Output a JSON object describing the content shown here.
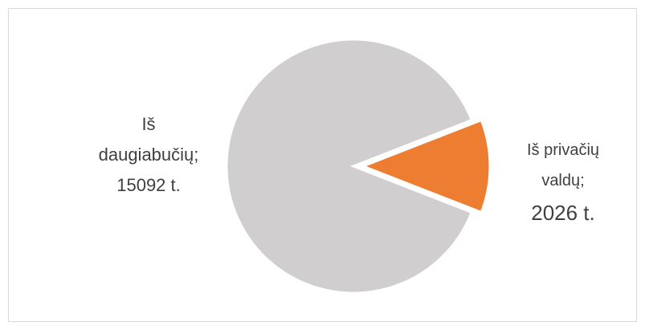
{
  "chart_data": {
    "type": "pie",
    "title": "",
    "slices": [
      {
        "label_lines": [
          "Iš",
          "daugiabučių;",
          "15092 t."
        ],
        "value": 15092,
        "unit": "t.",
        "color": "#d0cece"
      },
      {
        "label_lines": [
          "Iš privačių",
          "valdų;",
          "2026 t."
        ],
        "value": 2026,
        "unit": "t.",
        "color": "#ed7d31",
        "exploded": true
      }
    ],
    "legend": "none"
  }
}
